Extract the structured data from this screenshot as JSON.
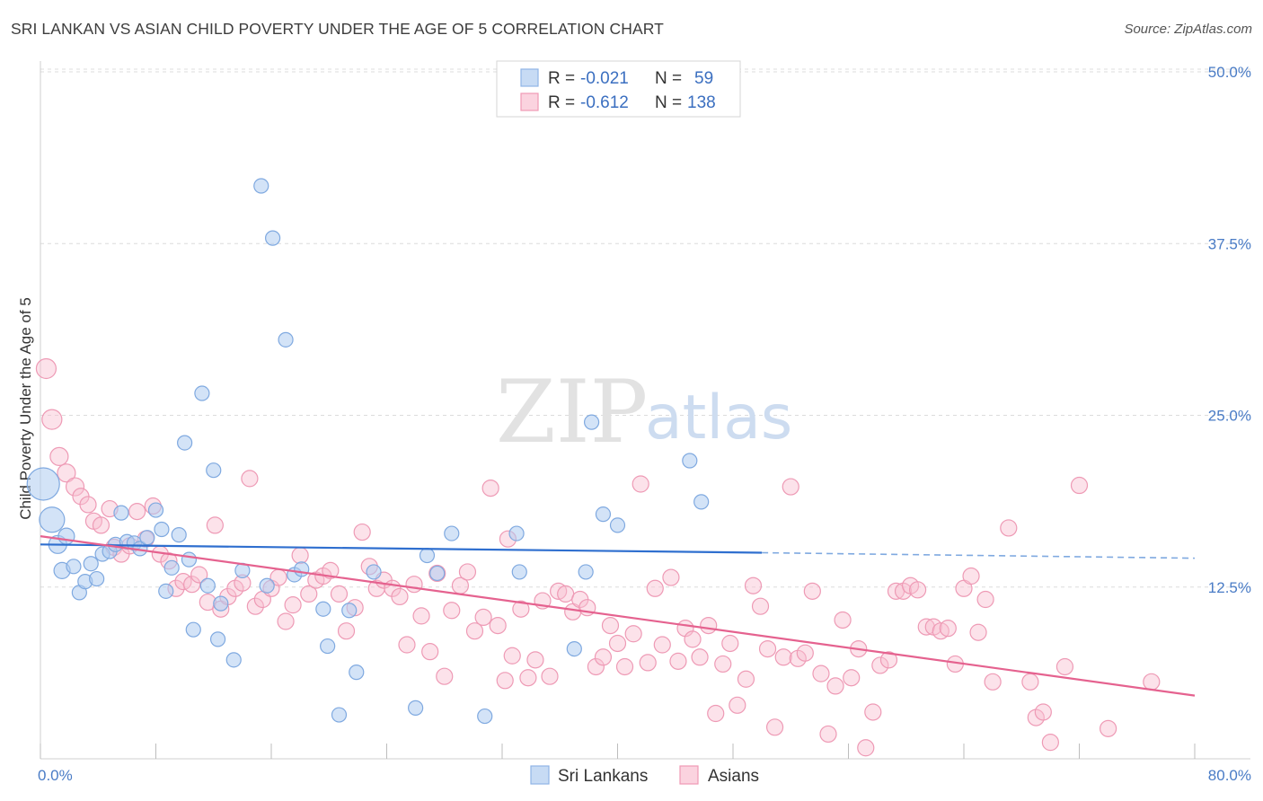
{
  "title": "SRI LANKAN VS ASIAN CHILD POVERTY UNDER THE AGE OF 5 CORRELATION CHART",
  "source": "Source: ZipAtlas.com",
  "watermark": {
    "zip": "ZIP",
    "atlas": "atlas"
  },
  "legend": {
    "rows": [
      {
        "r_label": "R =",
        "r_value": "-0.021",
        "n_label": "N =",
        "n_value": "59",
        "color": "#a9c8ee"
      },
      {
        "r_label": "R =",
        "r_value": "-0.612",
        "n_label": "N =",
        "n_value": "138",
        "color": "#f6b6c9"
      }
    ]
  },
  "bottom_legend": [
    {
      "label": "Sri Lankans",
      "color": "#a9c8ee"
    },
    {
      "label": "Asians",
      "color": "#f6b6c9"
    }
  ],
  "chart_data": {
    "type": "scatter",
    "title": "SRI LANKAN VS ASIAN CHILD POVERTY UNDER THE AGE OF 5 CORRELATION CHART",
    "xlabel": "",
    "ylabel": "Child Poverty Under the Age of 5",
    "xlim": [
      0,
      80
    ],
    "ylim": [
      0,
      50
    ],
    "x_tick_labels": [
      "0.0%",
      "80.0%"
    ],
    "y_ticks": [
      12.5,
      25.0,
      37.5,
      50.0
    ],
    "y_tick_labels": [
      "12.5%",
      "25.0%",
      "37.5%",
      "50.0%"
    ],
    "grid": "dashed horizontal",
    "legend_position": "top-center",
    "series": [
      {
        "name": "Sri Lankans",
        "color": "#6aa0e0",
        "R": -0.021,
        "N": 59,
        "trend": {
          "x0": 0,
          "y0": 15.6,
          "x1": 50,
          "y1": 15.0,
          "dashed_to_x": 80,
          "dashed_to_y": 14.6
        },
        "points": [
          [
            0.2,
            20.0,
            18
          ],
          [
            0.8,
            17.4,
            14
          ],
          [
            1.2,
            15.6,
            10
          ],
          [
            1.8,
            16.2,
            9
          ],
          [
            1.5,
            13.7,
            9
          ],
          [
            2.3,
            14.0,
            8
          ],
          [
            2.7,
            12.1,
            8
          ],
          [
            3.1,
            12.9,
            8
          ],
          [
            3.5,
            14.2,
            8
          ],
          [
            3.9,
            13.1,
            8
          ],
          [
            4.3,
            14.9,
            8
          ],
          [
            4.8,
            15.1,
            8
          ],
          [
            5.2,
            15.6,
            8
          ],
          [
            5.6,
            17.9,
            8
          ],
          [
            6.0,
            15.8,
            8
          ],
          [
            6.5,
            15.7,
            8
          ],
          [
            6.9,
            15.3,
            8
          ],
          [
            7.4,
            16.1,
            8
          ],
          [
            8.0,
            18.1,
            8
          ],
          [
            8.4,
            16.7,
            8
          ],
          [
            8.7,
            12.2,
            8
          ],
          [
            9.1,
            13.9,
            8
          ],
          [
            9.6,
            16.3,
            8
          ],
          [
            10.0,
            23.0,
            8
          ],
          [
            10.3,
            14.5,
            8
          ],
          [
            10.6,
            9.4,
            8
          ],
          [
            11.2,
            26.6,
            8
          ],
          [
            11.6,
            12.6,
            8
          ],
          [
            12.0,
            21.0,
            8
          ],
          [
            12.5,
            11.3,
            8
          ],
          [
            12.3,
            8.7,
            8
          ],
          [
            13.4,
            7.2,
            8
          ],
          [
            14.0,
            13.7,
            8
          ],
          [
            15.3,
            41.7,
            8
          ],
          [
            15.7,
            12.6,
            8
          ],
          [
            16.1,
            37.9,
            8
          ],
          [
            17.0,
            30.5,
            8
          ],
          [
            17.6,
            13.4,
            8
          ],
          [
            18.1,
            13.8,
            8
          ],
          [
            19.6,
            10.9,
            8
          ],
          [
            19.9,
            8.2,
            8
          ],
          [
            20.7,
            3.2,
            8
          ],
          [
            21.4,
            10.8,
            8
          ],
          [
            21.9,
            6.3,
            8
          ],
          [
            23.1,
            13.6,
            8
          ],
          [
            26.0,
            3.7,
            8
          ],
          [
            26.8,
            14.8,
            8
          ],
          [
            27.5,
            13.5,
            8
          ],
          [
            28.5,
            16.4,
            8
          ],
          [
            30.8,
            3.1,
            8
          ],
          [
            33.0,
            16.4,
            8
          ],
          [
            33.2,
            13.6,
            8
          ],
          [
            37.0,
            8.0,
            8
          ],
          [
            38.2,
            24.5,
            8
          ],
          [
            39.0,
            17.8,
            8
          ],
          [
            40.0,
            17.0,
            8
          ],
          [
            45.0,
            21.7,
            8
          ],
          [
            45.8,
            18.7,
            8
          ],
          [
            37.8,
            13.6,
            8
          ]
        ]
      },
      {
        "name": "Asians",
        "color": "#ec6f96",
        "R": -0.612,
        "N": 138,
        "trend": {
          "x0": 0,
          "y0": 16.2,
          "x1": 80,
          "y1": 4.6
        },
        "points": [
          [
            0.4,
            28.4,
            11
          ],
          [
            0.8,
            24.7,
            11
          ],
          [
            1.3,
            22.0,
            10
          ],
          [
            1.8,
            20.8,
            10
          ],
          [
            2.4,
            19.8,
            10
          ],
          [
            2.8,
            19.1,
            9
          ],
          [
            3.3,
            18.5,
            9
          ],
          [
            3.7,
            17.3,
            9
          ],
          [
            4.2,
            17.0,
            9
          ],
          [
            4.8,
            18.2,
            9
          ],
          [
            5.1,
            15.4,
            9
          ],
          [
            5.6,
            14.9,
            9
          ],
          [
            6.2,
            15.5,
            9
          ],
          [
            6.7,
            18.0,
            9
          ],
          [
            7.3,
            16.0,
            9
          ],
          [
            7.8,
            18.4,
            9
          ],
          [
            8.3,
            14.9,
            9
          ],
          [
            8.9,
            14.4,
            9
          ],
          [
            9.4,
            12.4,
            9
          ],
          [
            9.9,
            12.9,
            9
          ],
          [
            10.5,
            12.7,
            9
          ],
          [
            11.0,
            13.4,
            9
          ],
          [
            11.6,
            11.4,
            9
          ],
          [
            12.1,
            17.0,
            9
          ],
          [
            12.5,
            10.9,
            9
          ],
          [
            13.0,
            11.8,
            9
          ],
          [
            13.5,
            12.4,
            9
          ],
          [
            14.0,
            12.8,
            9
          ],
          [
            14.5,
            20.4,
            9
          ],
          [
            14.9,
            11.1,
            9
          ],
          [
            15.4,
            11.6,
            9
          ],
          [
            16.0,
            12.4,
            9
          ],
          [
            16.5,
            13.2,
            9
          ],
          [
            17.0,
            10.0,
            9
          ],
          [
            17.5,
            11.2,
            9
          ],
          [
            18.0,
            14.8,
            9
          ],
          [
            18.6,
            12.0,
            9
          ],
          [
            19.1,
            13.0,
            9
          ],
          [
            19.6,
            13.3,
            9
          ],
          [
            20.1,
            13.7,
            9
          ],
          [
            20.7,
            12.0,
            9
          ],
          [
            21.2,
            9.3,
            9
          ],
          [
            21.8,
            11.0,
            9
          ],
          [
            22.3,
            16.5,
            9
          ],
          [
            22.8,
            14.0,
            9
          ],
          [
            23.3,
            12.4,
            9
          ],
          [
            23.8,
            13.0,
            9
          ],
          [
            24.4,
            12.4,
            9
          ],
          [
            24.9,
            11.8,
            9
          ],
          [
            25.4,
            8.3,
            9
          ],
          [
            25.9,
            12.7,
            9
          ],
          [
            26.4,
            10.4,
            9
          ],
          [
            27.0,
            7.8,
            9
          ],
          [
            27.5,
            13.5,
            9
          ],
          [
            28.0,
            6.0,
            9
          ],
          [
            28.5,
            10.8,
            9
          ],
          [
            29.1,
            12.6,
            9
          ],
          [
            29.6,
            13.6,
            9
          ],
          [
            30.1,
            9.3,
            9
          ],
          [
            30.7,
            10.3,
            9
          ],
          [
            31.2,
            19.7,
            9
          ],
          [
            31.7,
            9.7,
            9
          ],
          [
            32.2,
            5.7,
            9
          ],
          [
            32.7,
            7.5,
            9
          ],
          [
            33.3,
            10.9,
            9
          ],
          [
            33.8,
            5.9,
            9
          ],
          [
            34.3,
            7.2,
            9
          ],
          [
            34.8,
            11.5,
            9
          ],
          [
            35.3,
            6.0,
            9
          ],
          [
            35.9,
            12.2,
            9
          ],
          [
            36.4,
            12.0,
            9
          ],
          [
            36.9,
            10.7,
            9
          ],
          [
            37.4,
            11.6,
            9
          ],
          [
            37.9,
            11.0,
            9
          ],
          [
            38.5,
            6.7,
            9
          ],
          [
            39.0,
            7.4,
            9
          ],
          [
            39.5,
            9.7,
            9
          ],
          [
            40.0,
            8.4,
            9
          ],
          [
            40.5,
            6.7,
            9
          ],
          [
            41.1,
            9.1,
            9
          ],
          [
            41.6,
            20.0,
            9
          ],
          [
            42.1,
            7.0,
            9
          ],
          [
            42.6,
            12.4,
            9
          ],
          [
            43.1,
            8.3,
            9
          ],
          [
            43.7,
            13.2,
            9
          ],
          [
            44.2,
            7.1,
            9
          ],
          [
            44.7,
            9.5,
            9
          ],
          [
            45.2,
            8.7,
            9
          ],
          [
            45.7,
            7.4,
            9
          ],
          [
            46.3,
            9.7,
            9
          ],
          [
            46.8,
            3.3,
            9
          ],
          [
            47.3,
            6.9,
            9
          ],
          [
            47.8,
            8.4,
            9
          ],
          [
            48.3,
            3.9,
            9
          ],
          [
            48.9,
            5.8,
            9
          ],
          [
            49.4,
            12.6,
            9
          ],
          [
            49.9,
            11.1,
            9
          ],
          [
            50.4,
            8.0,
            9
          ],
          [
            50.9,
            2.3,
            9
          ],
          [
            51.5,
            7.4,
            9
          ],
          [
            52.0,
            19.8,
            9
          ],
          [
            52.5,
            7.3,
            9
          ],
          [
            53.0,
            7.7,
            9
          ],
          [
            53.5,
            12.2,
            9
          ],
          [
            54.1,
            6.2,
            9
          ],
          [
            54.6,
            1.8,
            9
          ],
          [
            55.1,
            5.3,
            9
          ],
          [
            55.6,
            10.1,
            9
          ],
          [
            56.2,
            5.9,
            9
          ],
          [
            56.7,
            8.0,
            9
          ],
          [
            57.2,
            0.8,
            9
          ],
          [
            57.7,
            3.4,
            9
          ],
          [
            58.2,
            6.8,
            9
          ],
          [
            58.8,
            7.2,
            9
          ],
          [
            59.3,
            12.2,
            9
          ],
          [
            59.8,
            12.2,
            9
          ],
          [
            60.3,
            12.6,
            9
          ],
          [
            60.8,
            12.3,
            9
          ],
          [
            61.4,
            9.6,
            9
          ],
          [
            61.9,
            9.6,
            9
          ],
          [
            62.4,
            9.3,
            9
          ],
          [
            62.9,
            9.5,
            9
          ],
          [
            63.4,
            6.9,
            9
          ],
          [
            64.0,
            12.4,
            9
          ],
          [
            64.5,
            13.3,
            9
          ],
          [
            65.0,
            9.2,
            9
          ],
          [
            65.5,
            11.6,
            9
          ],
          [
            66.0,
            5.6,
            9
          ],
          [
            67.1,
            16.8,
            9
          ],
          [
            68.6,
            5.6,
            9
          ],
          [
            69.0,
            3.0,
            9
          ],
          [
            69.5,
            3.4,
            9
          ],
          [
            70.0,
            1.2,
            9
          ],
          [
            71.0,
            6.7,
            9
          ],
          [
            72.0,
            19.9,
            9
          ],
          [
            74.0,
            2.2,
            9
          ],
          [
            77.0,
            5.6,
            9
          ],
          [
            32.4,
            16.0,
            9
          ]
        ]
      }
    ]
  }
}
